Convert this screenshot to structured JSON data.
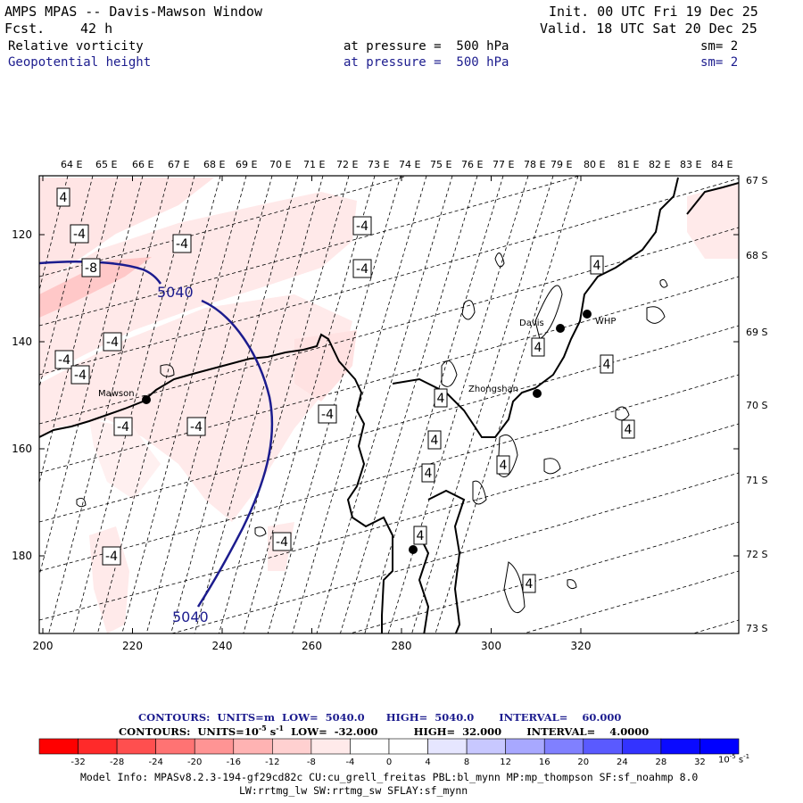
{
  "header": {
    "title": "AMPS MPAS -- Davis-Mawson Window",
    "fcst_label": "Fcst.",
    "fcst_value": "42 h",
    "init": "Init. 00 UTC Fri 19 Dec 25",
    "valid": "Valid. 18 UTC Sat 20 Dec 25",
    "field1": {
      "name": "Relative vorticity",
      "pressure": "at pressure =  500 hPa",
      "sm": "sm= 2"
    },
    "field2": {
      "name": "Geopotential height",
      "pressure": "at pressure =  500 hPa",
      "sm": "sm= 2"
    }
  },
  "map": {
    "lon_labels": [
      "64 E",
      "65 E",
      "66 E",
      "67 E",
      "68 E",
      "69 E",
      "70 E",
      "71 E",
      "72 E",
      "73 E",
      "74 E",
      "75 E",
      "76 E",
      "77 E",
      "78 E",
      "79 E",
      "80 E",
      "81 E",
      "82 E",
      "83 E",
      "84 E"
    ],
    "lat_labels": [
      "67 S",
      "68 S",
      "69 S",
      "70 S",
      "71 S",
      "72 S",
      "73 S"
    ],
    "x_ticks": [
      "200",
      "220",
      "240",
      "260",
      "280",
      "300",
      "320"
    ],
    "y_ticks": [
      "120",
      "140",
      "160",
      "180"
    ],
    "stations": [
      {
        "name": "Mawson"
      },
      {
        "name": "Davis"
      },
      {
        "name": "WHP"
      },
      {
        "name": "Zhongshan"
      },
      {
        "name": ""
      }
    ],
    "height_contour_labels": [
      "5040",
      "5040"
    ],
    "vorticity_labels": [
      "4",
      "-4",
      "-4",
      "-8",
      "-4",
      "-4",
      "-4",
      "-4",
      "-4",
      "-4",
      "-4",
      "-4",
      "-4",
      "-4",
      "-4",
      "4",
      "4",
      "4",
      "4",
      "4",
      "4",
      "4",
      "4",
      "4",
      "4",
      "4",
      "4"
    ]
  },
  "footer": {
    "contours1": "CONTOURS:  UNITS=m  LOW=  5040.0      HIGH=  5040.0       INTERVAL=    60.000",
    "contours2": "CONTOURS:  UNITS=10",
    "contours2_exp": "-5",
    "contours2_rest": " s",
    "contours2_exp2": "-1",
    "contours2_tail": "  LOW=  -32.000          HIGH=  32.000       INTERVAL=    4.0000",
    "colorbar_labels": [
      "-32",
      "-28",
      "-24",
      "-20",
      "-16",
      "-12",
      "-8",
      "-4",
      "0",
      "4",
      "8",
      "12",
      "16",
      "20",
      "24",
      "28",
      "32"
    ],
    "colorbar_colors": [
      "#ff0000",
      "#ff2a2a",
      "#ff4f4f",
      "#ff7373",
      "#ff9494",
      "#ffb3b3",
      "#ffd0d0",
      "#ffeaea",
      "#ffffff",
      "#ffffff",
      "#e6e6ff",
      "#c8c8ff",
      "#a8a8ff",
      "#8080ff",
      "#5a5aff",
      "#3333ff",
      "#0a0aff",
      "#0000ff"
    ],
    "units": "10",
    "units_exp": "-5",
    "units_s": " s",
    "units_exp2": "-1",
    "model_info1": "Model Info: MPASv8.2.3-194-gf29cd82c CU:cu_grell_freitas PBL:bl_mynn MP:mp_thompson SF:sf_noahmp 8.0",
    "model_info2": "LW:rrtmg_lw SW:rrtmg_sw SFLAY:sf_mynn"
  },
  "colors": {
    "contour_blue": "#1c1c8e",
    "shade_light": "#ffeaea",
    "shade_mid": "#ffd0d0",
    "shade_dark": "#ffb8b8"
  }
}
